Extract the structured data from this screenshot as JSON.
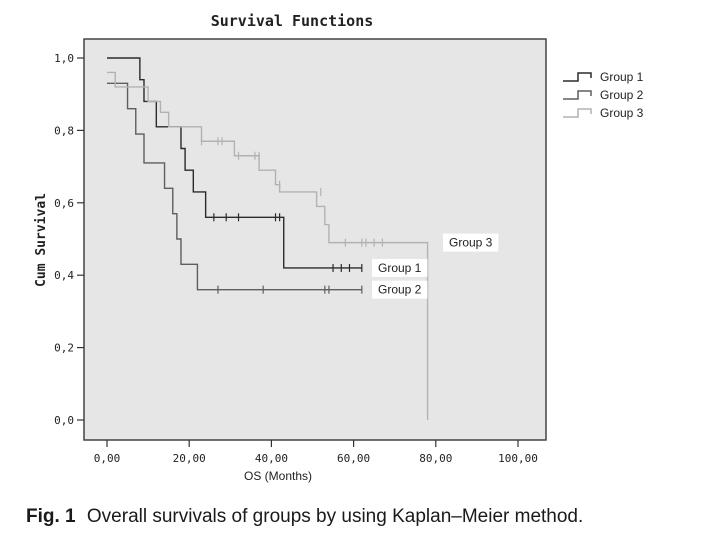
{
  "chart_data": {
    "type": "line",
    "subtype": "kaplan-meier step",
    "title": "Survival Functions",
    "xlabel": "OS (Months)",
    "ylabel": "Cum Survival",
    "xlim": [
      0,
      100
    ],
    "ylim": [
      0,
      1
    ],
    "x_ticks": [
      0,
      20,
      40,
      60,
      80,
      100
    ],
    "x_tick_labels": [
      "0,00",
      "20,00",
      "40,00",
      "60,00",
      "80,00",
      "100,00"
    ],
    "y_ticks": [
      0,
      0.2,
      0.4,
      0.6,
      0.8,
      1.0
    ],
    "y_tick_labels": [
      "0,0",
      "0,2",
      "0,4",
      "0,6",
      "0,8",
      "1,0"
    ],
    "grid": false,
    "legend_position": "top-right",
    "legend": [
      "Group 1",
      "Group 2",
      "Group 3"
    ],
    "series": [
      {
        "name": "Group 1",
        "color": "#2b2b2b",
        "steps": [
          [
            0,
            1.0
          ],
          [
            8,
            0.94
          ],
          [
            9,
            0.88
          ],
          [
            12,
            0.81
          ],
          [
            18,
            0.75
          ],
          [
            19,
            0.69
          ],
          [
            21,
            0.63
          ],
          [
            24,
            0.56
          ],
          [
            43,
            0.42
          ],
          [
            62,
            0.42
          ]
        ],
        "censored": [
          [
            26,
            0.56
          ],
          [
            29,
            0.56
          ],
          [
            32,
            0.56
          ],
          [
            41,
            0.56
          ],
          [
            42,
            0.56
          ],
          [
            55,
            0.42
          ],
          [
            57,
            0.42
          ],
          [
            59,
            0.42
          ],
          [
            62,
            0.42
          ]
        ],
        "end_label": "Group 1"
      },
      {
        "name": "Group 2",
        "color": "#5e5e5e",
        "steps": [
          [
            0,
            0.93
          ],
          [
            5,
            0.86
          ],
          [
            7,
            0.79
          ],
          [
            9,
            0.71
          ],
          [
            14,
            0.64
          ],
          [
            16,
            0.57
          ],
          [
            17,
            0.5
          ],
          [
            18,
            0.43
          ],
          [
            22,
            0.36
          ],
          [
            62,
            0.36
          ]
        ],
        "censored": [
          [
            27,
            0.36
          ],
          [
            38,
            0.36
          ],
          [
            53,
            0.36
          ],
          [
            54,
            0.36
          ],
          [
            62,
            0.36
          ]
        ],
        "end_label": "Group 2"
      },
      {
        "name": "Group 3",
        "color": "#b2b2b2",
        "steps": [
          [
            0,
            0.96
          ],
          [
            2,
            0.92
          ],
          [
            10,
            0.88
          ],
          [
            13,
            0.85
          ],
          [
            15,
            0.81
          ],
          [
            23,
            0.77
          ],
          [
            31,
            0.73
          ],
          [
            37,
            0.69
          ],
          [
            41,
            0.65
          ],
          [
            42,
            0.63
          ],
          [
            51,
            0.59
          ],
          [
            53,
            0.54
          ],
          [
            54,
            0.49
          ],
          [
            77,
            0.49
          ],
          [
            78,
            0.0
          ]
        ],
        "censored": [
          [
            23,
            0.77
          ],
          [
            27,
            0.77
          ],
          [
            28,
            0.77
          ],
          [
            32,
            0.73
          ],
          [
            36,
            0.73
          ],
          [
            37,
            0.73
          ],
          [
            42,
            0.65
          ],
          [
            52,
            0.63
          ],
          [
            58,
            0.49
          ],
          [
            62,
            0.49
          ],
          [
            63,
            0.49
          ],
          [
            65,
            0.49
          ],
          [
            67,
            0.49
          ]
        ],
        "end_label": "Group 3"
      }
    ]
  },
  "caption": {
    "label": "Fig. 1",
    "text": "Overall survivals of groups by using Kaplan–Meier method."
  }
}
